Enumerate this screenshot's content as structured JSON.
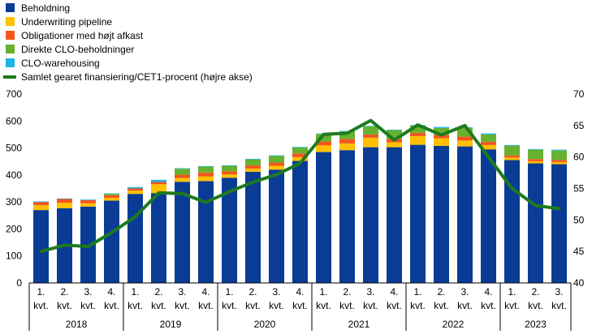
{
  "chart_data": {
    "type": "bar",
    "stacked": true,
    "categories": [
      "1. kvt.",
      "2. kvt.",
      "3. kvt.",
      "4. kvt.",
      "1. kvt.",
      "2. kvt.",
      "3. kvt.",
      "4. kvt.",
      "1. kvt.",
      "2. kvt.",
      "3. kvt.",
      "4. kvt.",
      "1. kvt.",
      "2. kvt.",
      "3. kvt.",
      "4. kvt.",
      "1. kvt.",
      "2. kvt.",
      "3. kvt.",
      "4. kvt.",
      "1. kvt.",
      "2. kvt.",
      "3. kvt."
    ],
    "years": [
      {
        "label": "2018",
        "count": 4
      },
      {
        "label": "2019",
        "count": 4
      },
      {
        "label": "2020",
        "count": 4
      },
      {
        "label": "2021",
        "count": 4
      },
      {
        "label": "2022",
        "count": 4
      },
      {
        "label": "2023",
        "count": 3
      }
    ],
    "series": [
      {
        "name": "Beholdning",
        "color": "#0a3c96",
        "values": [
          270,
          277,
          283,
          305,
          330,
          333,
          375,
          377,
          390,
          412,
          420,
          452,
          485,
          492,
          503,
          503,
          512,
          508,
          506,
          495,
          455,
          443,
          440
        ]
      },
      {
        "name": "Underwriting pipeline",
        "color": "#ffc000",
        "values": [
          18,
          20,
          12,
          10,
          12,
          33,
          14,
          18,
          12,
          12,
          14,
          14,
          25,
          25,
          35,
          18,
          32,
          28,
          22,
          16,
          10,
          8,
          8
        ]
      },
      {
        "name": "Obligationer med højt afkast",
        "color": "#f5561e",
        "values": [
          12,
          14,
          12,
          10,
          8,
          8,
          12,
          14,
          12,
          12,
          12,
          14,
          14,
          16,
          12,
          12,
          12,
          12,
          14,
          12,
          8,
          8,
          8
        ]
      },
      {
        "name": "Direkte CLO-beholdninger",
        "color": "#66b22e",
        "values": [
          0,
          0,
          0,
          5,
          0,
          0,
          22,
          22,
          20,
          22,
          25,
          22,
          28,
          28,
          30,
          33,
          27,
          26,
          33,
          27,
          36,
          35,
          35
        ]
      },
      {
        "name": "CLO-warehousing",
        "color": "#1eb4e6",
        "values": [
          2,
          2,
          2,
          2,
          5,
          8,
          2,
          2,
          2,
          2,
          2,
          2,
          2,
          2,
          2,
          2,
          2,
          4,
          2,
          4,
          2,
          2,
          3
        ]
      }
    ],
    "line_series": {
      "name": "Samlet gearet finansiering/CET1-procent (højre akse)",
      "color": "#1e7a1e",
      "axis": "right",
      "values": [
        45.0,
        46.0,
        45.8,
        48.0,
        50.5,
        54.3,
        54.2,
        52.8,
        54.5,
        56.0,
        57.2,
        59.0,
        63.6,
        63.8,
        65.8,
        62.7,
        65.1,
        63.5,
        65.0,
        60.0,
        55.0,
        52.3,
        51.8
      ]
    },
    "y_left": {
      "min": 0,
      "max": 700,
      "ticks": [
        0,
        100,
        200,
        300,
        400,
        500,
        600,
        700
      ]
    },
    "y_right": {
      "min": 40,
      "max": 70,
      "ticks": [
        40,
        45,
        50,
        55,
        60,
        65,
        70
      ]
    },
    "grid": false,
    "legend_position": "top-left"
  },
  "legend": {
    "items": [
      {
        "label": "Beholdning",
        "color": "#0a3c96",
        "kind": "box"
      },
      {
        "label": "Underwriting pipeline",
        "color": "#ffc000",
        "kind": "box"
      },
      {
        "label": "Obligationer med højt afkast",
        "color": "#f5561e",
        "kind": "box"
      },
      {
        "label": "Direkte CLO-beholdninger",
        "color": "#66b22e",
        "kind": "box"
      },
      {
        "label": "CLO-warehousing",
        "color": "#1eb4e6",
        "kind": "box"
      },
      {
        "label": "Samlet gearet finansiering/CET1-procent (højre akse)",
        "color": "#1e7a1e",
        "kind": "line"
      }
    ]
  }
}
